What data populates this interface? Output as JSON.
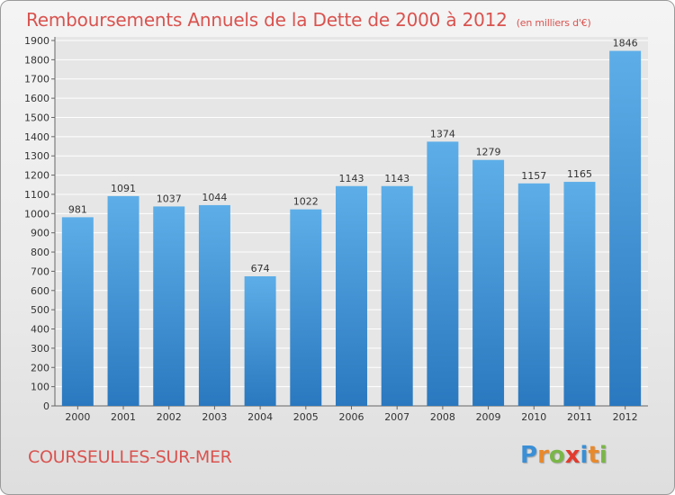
{
  "header": {
    "title": "Remboursements Annuels de la Dette de 2000 à 2012",
    "subtitle": "(en milliers d'€)"
  },
  "footer": {
    "commune": "COURSEULLES-SUR-MER",
    "logo_letters": [
      "P",
      "r",
      "o",
      "x",
      "i",
      "t",
      "i"
    ],
    "logo_colors": [
      "#3a8fd6",
      "#e8892c",
      "#7ab648",
      "#e23b2e",
      "#3a8fd6",
      "#e8892c",
      "#7ab648"
    ]
  },
  "colors": {
    "bar_top": "#5daee8",
    "bar_bottom": "#2a78bf",
    "grid": "#ffffff",
    "text": "#333333",
    "accent": "#d9534f"
  },
  "chart_data": {
    "type": "bar",
    "categories": [
      "2000",
      "2001",
      "2002",
      "2003",
      "2004",
      "2005",
      "2006",
      "2007",
      "2008",
      "2009",
      "2010",
      "2011",
      "2012"
    ],
    "values": [
      981,
      1091,
      1037,
      1044,
      674,
      1022,
      1143,
      1143,
      1374,
      1279,
      1157,
      1165,
      1846
    ],
    "ylim": [
      0,
      1900
    ],
    "ytick_step": 100,
    "grid": true
  }
}
